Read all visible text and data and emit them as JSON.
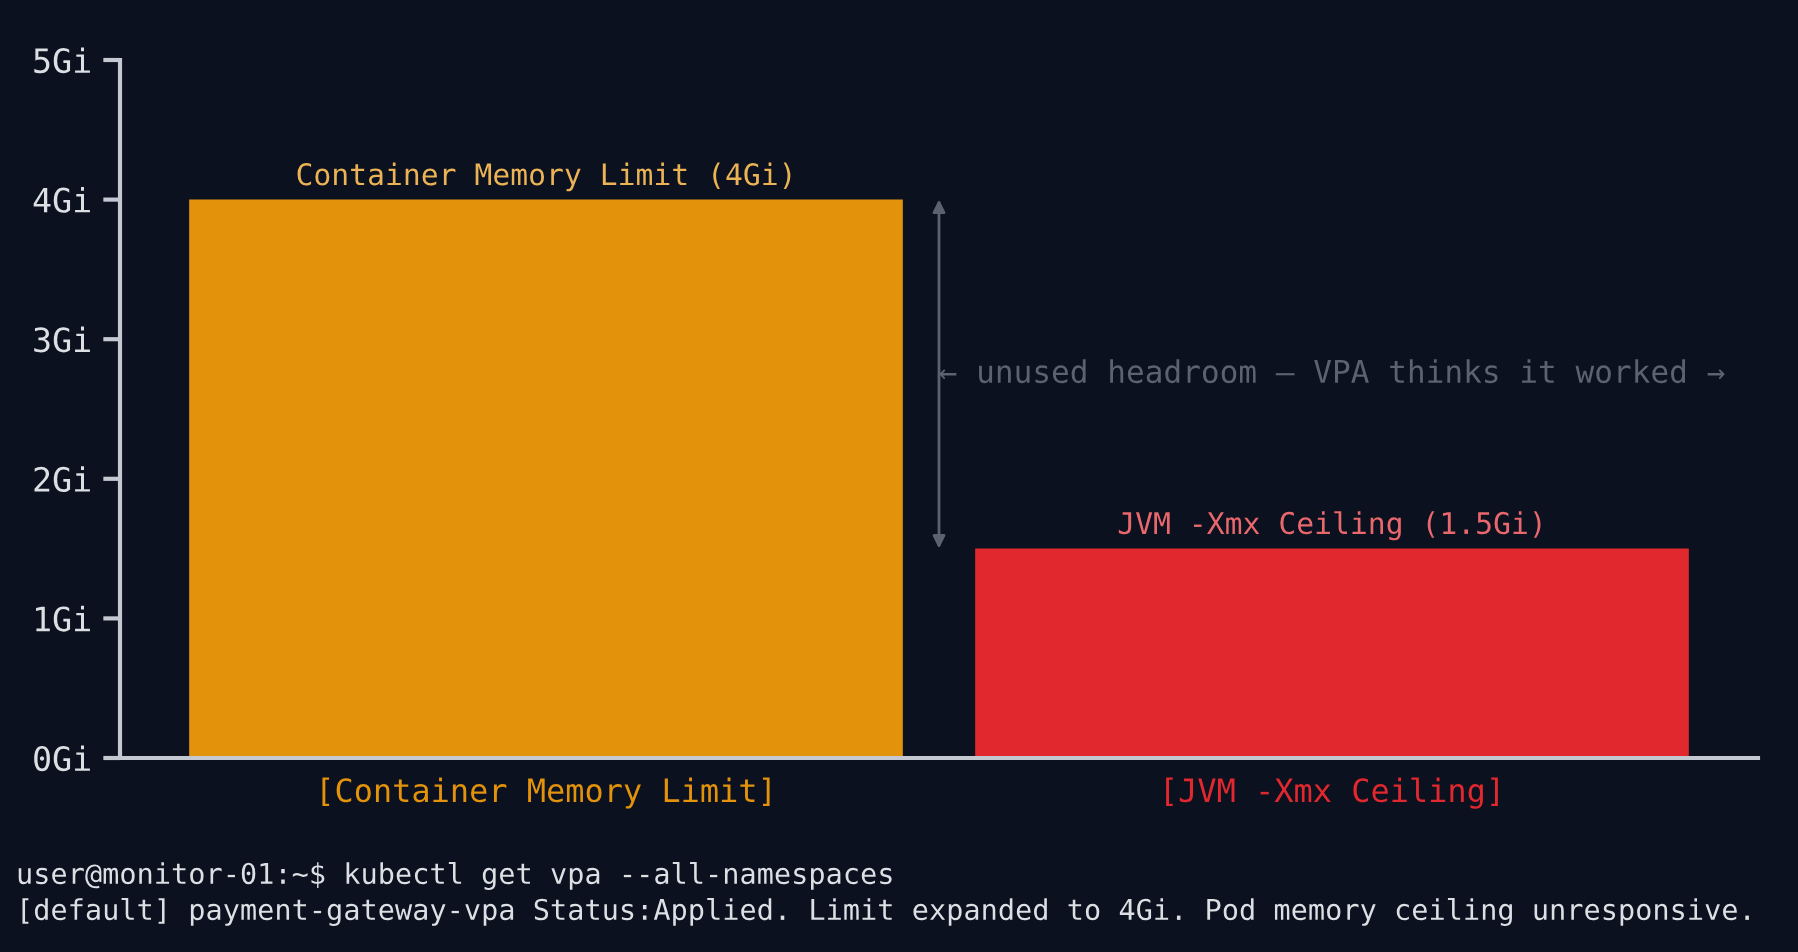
{
  "chart_data": {
    "type": "bar",
    "categories": [
      "[Container Memory Limit]",
      "[JVM -Xmx Ceiling]"
    ],
    "values": [
      4,
      1.5
    ],
    "colors": [
      "#e3920c",
      "#e0282e"
    ],
    "value_labels": [
      "Container Memory Limit (4Gi)",
      "JVM -Xmx Ceiling (1.5Gi)"
    ],
    "ylim": [
      0,
      5
    ],
    "yticks": [
      {
        "value": 0,
        "label": "0Gi"
      },
      {
        "value": 1,
        "label": "1Gi"
      },
      {
        "value": 2,
        "label": "2Gi"
      },
      {
        "value": 3,
        "label": "3Gi"
      },
      {
        "value": 4,
        "label": "4Gi"
      },
      {
        "value": 5,
        "label": "5Gi"
      }
    ],
    "annotations": [
      "← unused headroom — VPA thinks it worked →",
      "user@monitor-01:~$ kubectl get vpa --all-namespaces",
      "[default] payment-gateway-vpa Status:Applied. Limit expanded to 4Gi. Pod memory ceiling unresponsive."
    ]
  }
}
